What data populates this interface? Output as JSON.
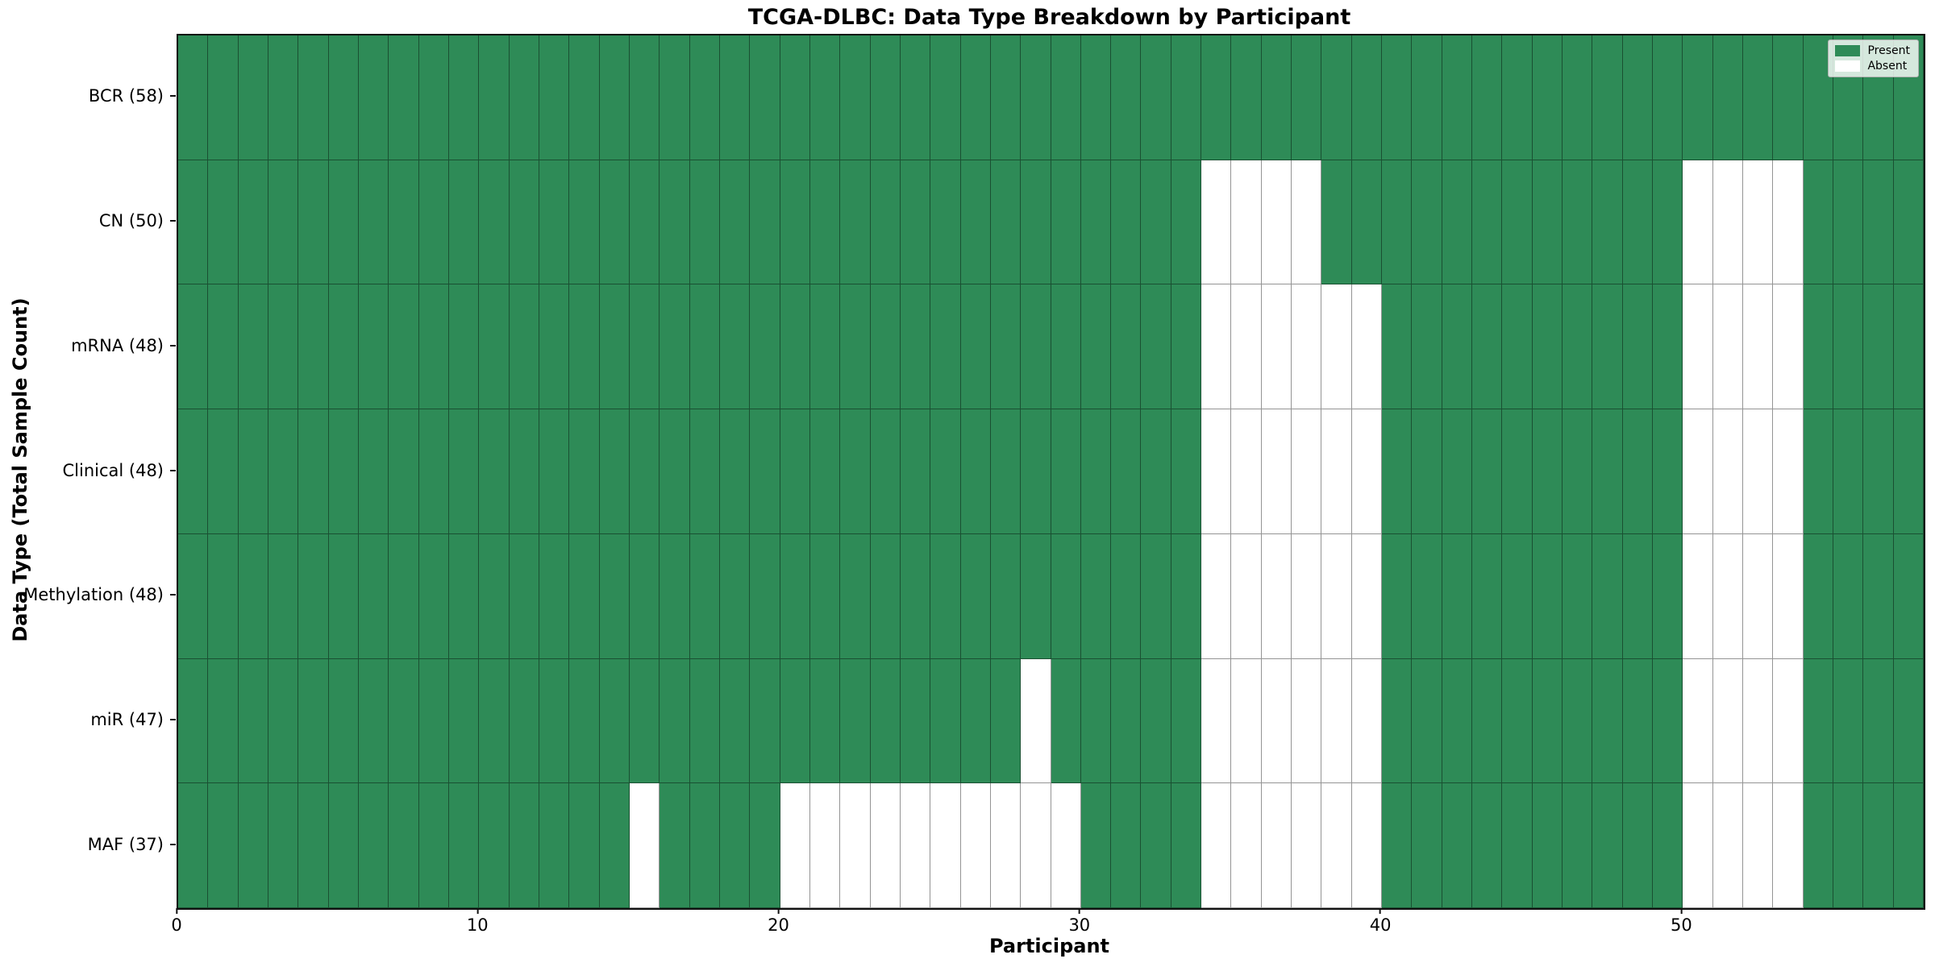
{
  "title": "TCGA-DLBC: Data Type Breakdown by Participant",
  "xlabel": "Participant",
  "ylabel": "Data Type (Total Sample Count)",
  "legend": {
    "position": "upper right",
    "present_label": "Present",
    "absent_label": "Absent"
  },
  "colors": {
    "present": "#2e8b57",
    "absent": "#ffffff",
    "gridline": "rgba(0,0,0,0.42)",
    "spine": "#111111",
    "text": "#000000",
    "legend_background": "rgba(255,255,255,0.8)"
  },
  "chart_data": {
    "type": "heatmap",
    "title": "TCGA-DLBC: Data Type Breakdown by Participant",
    "xlabel": "Participant",
    "ylabel": "Data Type (Total Sample Count)",
    "legend_entries": [
      "Present",
      "Absent"
    ],
    "legend_position": "upper right",
    "grid": true,
    "n_participants": 58,
    "x_range": [
      0,
      58
    ],
    "x_ticks": [
      0,
      10,
      20,
      30,
      40,
      50
    ],
    "value_encoding": {
      "present": 1,
      "absent": 0
    },
    "rows": [
      {
        "label": "BCR (58)",
        "data_type": "BCR",
        "total": 58,
        "absent_participants": []
      },
      {
        "label": "CN (50)",
        "data_type": "CN",
        "total": 50,
        "absent_participants": [
          34,
          35,
          36,
          37,
          50,
          51,
          52,
          53
        ]
      },
      {
        "label": "mRNA (48)",
        "data_type": "mRNA",
        "total": 48,
        "absent_participants": [
          34,
          35,
          36,
          37,
          38,
          39,
          50,
          51,
          52,
          53
        ]
      },
      {
        "label": "Clinical (48)",
        "data_type": "Clinical",
        "total": 48,
        "absent_participants": [
          34,
          35,
          36,
          37,
          38,
          39,
          50,
          51,
          52,
          53
        ]
      },
      {
        "label": "Methylation (48)",
        "data_type": "Methylation",
        "total": 48,
        "absent_participants": [
          34,
          35,
          36,
          37,
          38,
          39,
          50,
          51,
          52,
          53
        ]
      },
      {
        "label": "miR (47)",
        "data_type": "miR",
        "total": 47,
        "absent_participants": [
          28,
          34,
          35,
          36,
          37,
          38,
          39,
          50,
          51,
          52,
          53
        ]
      },
      {
        "label": "MAF (37)",
        "data_type": "MAF",
        "total": 37,
        "absent_participants": [
          15,
          20,
          21,
          22,
          23,
          24,
          25,
          26,
          27,
          28,
          29,
          34,
          35,
          36,
          37,
          38,
          39,
          50,
          51,
          52,
          53
        ]
      }
    ]
  }
}
